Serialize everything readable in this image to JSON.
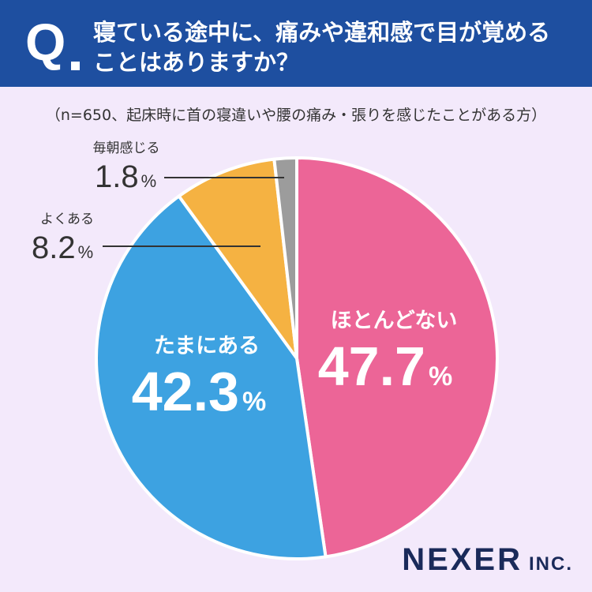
{
  "header": {
    "q_mark": "Q",
    "question_line1": "寝ている途中に、痛みや違和感で目が覚める",
    "question_line2": "ことはありますか？"
  },
  "note": "（n=650、起床時に首の寝違いや腰の痛み・張りを感じたことがある方）",
  "logo": {
    "main": "NEXER",
    "sub": "INC."
  },
  "colors": {
    "header_bg": "#1e4fa0",
    "background": "#f3e9fb",
    "slice_pink": "#ec6597",
    "slice_blue": "#3da2e1",
    "slice_orange": "#f5b242",
    "slice_gray": "#9c9c9c",
    "leader_line": "#333333"
  },
  "chart_data": {
    "type": "pie",
    "title": "寝ている途中に、痛みや違和感で目が覚めることはありますか？",
    "unit": "%",
    "start": "12 o'clock",
    "direction": "clockwise",
    "slices": [
      {
        "label": "ほとんどない",
        "value": 47.7,
        "value_text": "47.7",
        "color": "#ec6597",
        "label_position": "inside"
      },
      {
        "label": "たまにある",
        "value": 42.3,
        "value_text": "42.3",
        "color": "#3da2e1",
        "label_position": "inside"
      },
      {
        "label": "よくある",
        "value": 8.2,
        "value_text": "8.2",
        "color": "#f5b242",
        "label_position": "outside"
      },
      {
        "label": "毎朝感じる",
        "value": 1.8,
        "value_text": "1.8",
        "color": "#9c9c9c",
        "label_position": "outside"
      }
    ]
  }
}
